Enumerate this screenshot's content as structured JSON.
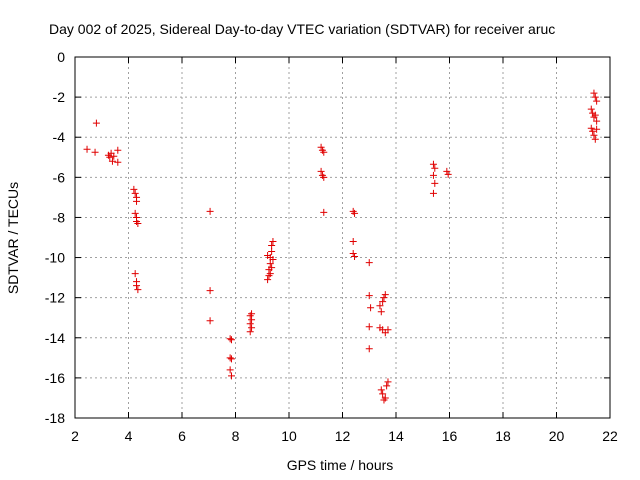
{
  "chart_data": {
    "type": "scatter",
    "title": "Day 002 of 2025, Sidereal Day-to-day VTEC variation (SDTVAR) for receiver aruc",
    "xlabel": "GPS time / hours",
    "ylabel": "SDTVAR / TECUs",
    "xlim": [
      2,
      22
    ],
    "ylim": [
      -18,
      0
    ],
    "xticks": [
      "2",
      "4",
      "6",
      "8",
      "10",
      "12",
      "14",
      "16",
      "18",
      "20",
      "22"
    ],
    "yticks": [
      "0",
      "-2",
      "-4",
      "-6",
      "-8",
      "-10",
      "-12",
      "-14",
      "-16",
      "-18"
    ],
    "grid": true,
    "marker": "+",
    "series": [
      {
        "name": "SDTVAR",
        "color": "#e00000",
        "points": [
          [
            2.45,
            -4.6
          ],
          [
            2.75,
            -4.75
          ],
          [
            2.8,
            -3.3
          ],
          [
            3.25,
            -4.9
          ],
          [
            3.3,
            -5.0
          ],
          [
            3.35,
            -4.8
          ],
          [
            3.4,
            -5.2
          ],
          [
            3.45,
            -4.95
          ],
          [
            3.6,
            -4.65
          ],
          [
            3.6,
            -5.25
          ],
          [
            4.2,
            -6.6
          ],
          [
            4.25,
            -6.8
          ],
          [
            4.3,
            -7.0
          ],
          [
            4.3,
            -7.2
          ],
          [
            4.25,
            -7.8
          ],
          [
            4.3,
            -8.0
          ],
          [
            4.3,
            -8.2
          ],
          [
            4.35,
            -8.3
          ],
          [
            4.25,
            -10.8
          ],
          [
            4.3,
            -11.2
          ],
          [
            4.3,
            -11.4
          ],
          [
            4.35,
            -11.6
          ],
          [
            7.05,
            -7.7
          ],
          [
            7.05,
            -11.65
          ],
          [
            7.05,
            -13.15
          ],
          [
            7.8,
            -14.05
          ],
          [
            7.85,
            -14.1
          ],
          [
            7.8,
            -15.0
          ],
          [
            7.85,
            -15.05
          ],
          [
            7.8,
            -15.6
          ],
          [
            7.85,
            -15.9
          ],
          [
            8.55,
            -12.9
          ],
          [
            8.6,
            -13.1
          ],
          [
            8.55,
            -13.3
          ],
          [
            8.6,
            -13.5
          ],
          [
            8.55,
            -13.7
          ],
          [
            8.6,
            -12.8
          ],
          [
            9.2,
            -11.1
          ],
          [
            9.25,
            -10.9
          ],
          [
            9.25,
            -10.6
          ],
          [
            9.3,
            -10.3
          ],
          [
            9.3,
            -10.0
          ],
          [
            9.35,
            -9.7
          ],
          [
            9.35,
            -9.4
          ],
          [
            9.4,
            -9.2
          ],
          [
            9.2,
            -9.9
          ],
          [
            9.3,
            -10.8
          ],
          [
            9.35,
            -10.5
          ],
          [
            9.4,
            -10.1
          ],
          [
            11.2,
            -4.5
          ],
          [
            11.25,
            -4.65
          ],
          [
            11.3,
            -4.75
          ],
          [
            11.2,
            -5.7
          ],
          [
            11.25,
            -5.9
          ],
          [
            11.3,
            -6.0
          ],
          [
            11.3,
            -7.75
          ],
          [
            12.4,
            -7.7
          ],
          [
            12.45,
            -7.8
          ],
          [
            12.4,
            -9.2
          ],
          [
            12.4,
            -9.8
          ],
          [
            12.45,
            -9.95
          ],
          [
            13.0,
            -10.25
          ],
          [
            13.0,
            -11.9
          ],
          [
            13.05,
            -12.5
          ],
          [
            13.0,
            -13.45
          ],
          [
            13.0,
            -14.55
          ],
          [
            13.4,
            -12.4
          ],
          [
            13.45,
            -12.7
          ],
          [
            13.5,
            -12.2
          ],
          [
            13.55,
            -12.0
          ],
          [
            13.6,
            -11.85
          ],
          [
            13.4,
            -13.5
          ],
          [
            13.5,
            -13.6
          ],
          [
            13.6,
            -13.75
          ],
          [
            13.7,
            -13.6
          ],
          [
            13.45,
            -16.6
          ],
          [
            13.5,
            -16.8
          ],
          [
            13.6,
            -17.0
          ],
          [
            13.65,
            -16.4
          ],
          [
            13.7,
            -16.2
          ],
          [
            13.55,
            -17.1
          ],
          [
            15.4,
            -5.35
          ],
          [
            15.45,
            -5.55
          ],
          [
            15.4,
            -5.9
          ],
          [
            15.45,
            -6.3
          ],
          [
            15.4,
            -6.8
          ],
          [
            15.9,
            -5.7
          ],
          [
            15.95,
            -5.85
          ],
          [
            21.3,
            -2.6
          ],
          [
            21.35,
            -2.8
          ],
          [
            21.4,
            -3.0
          ],
          [
            21.45,
            -2.9
          ],
          [
            21.5,
            -3.2
          ],
          [
            21.4,
            -1.8
          ],
          [
            21.45,
            -2.0
          ],
          [
            21.5,
            -2.2
          ],
          [
            21.3,
            -3.55
          ],
          [
            21.35,
            -3.7
          ],
          [
            21.4,
            -3.9
          ],
          [
            21.45,
            -4.1
          ],
          [
            21.5,
            -3.6
          ]
        ]
      }
    ]
  }
}
